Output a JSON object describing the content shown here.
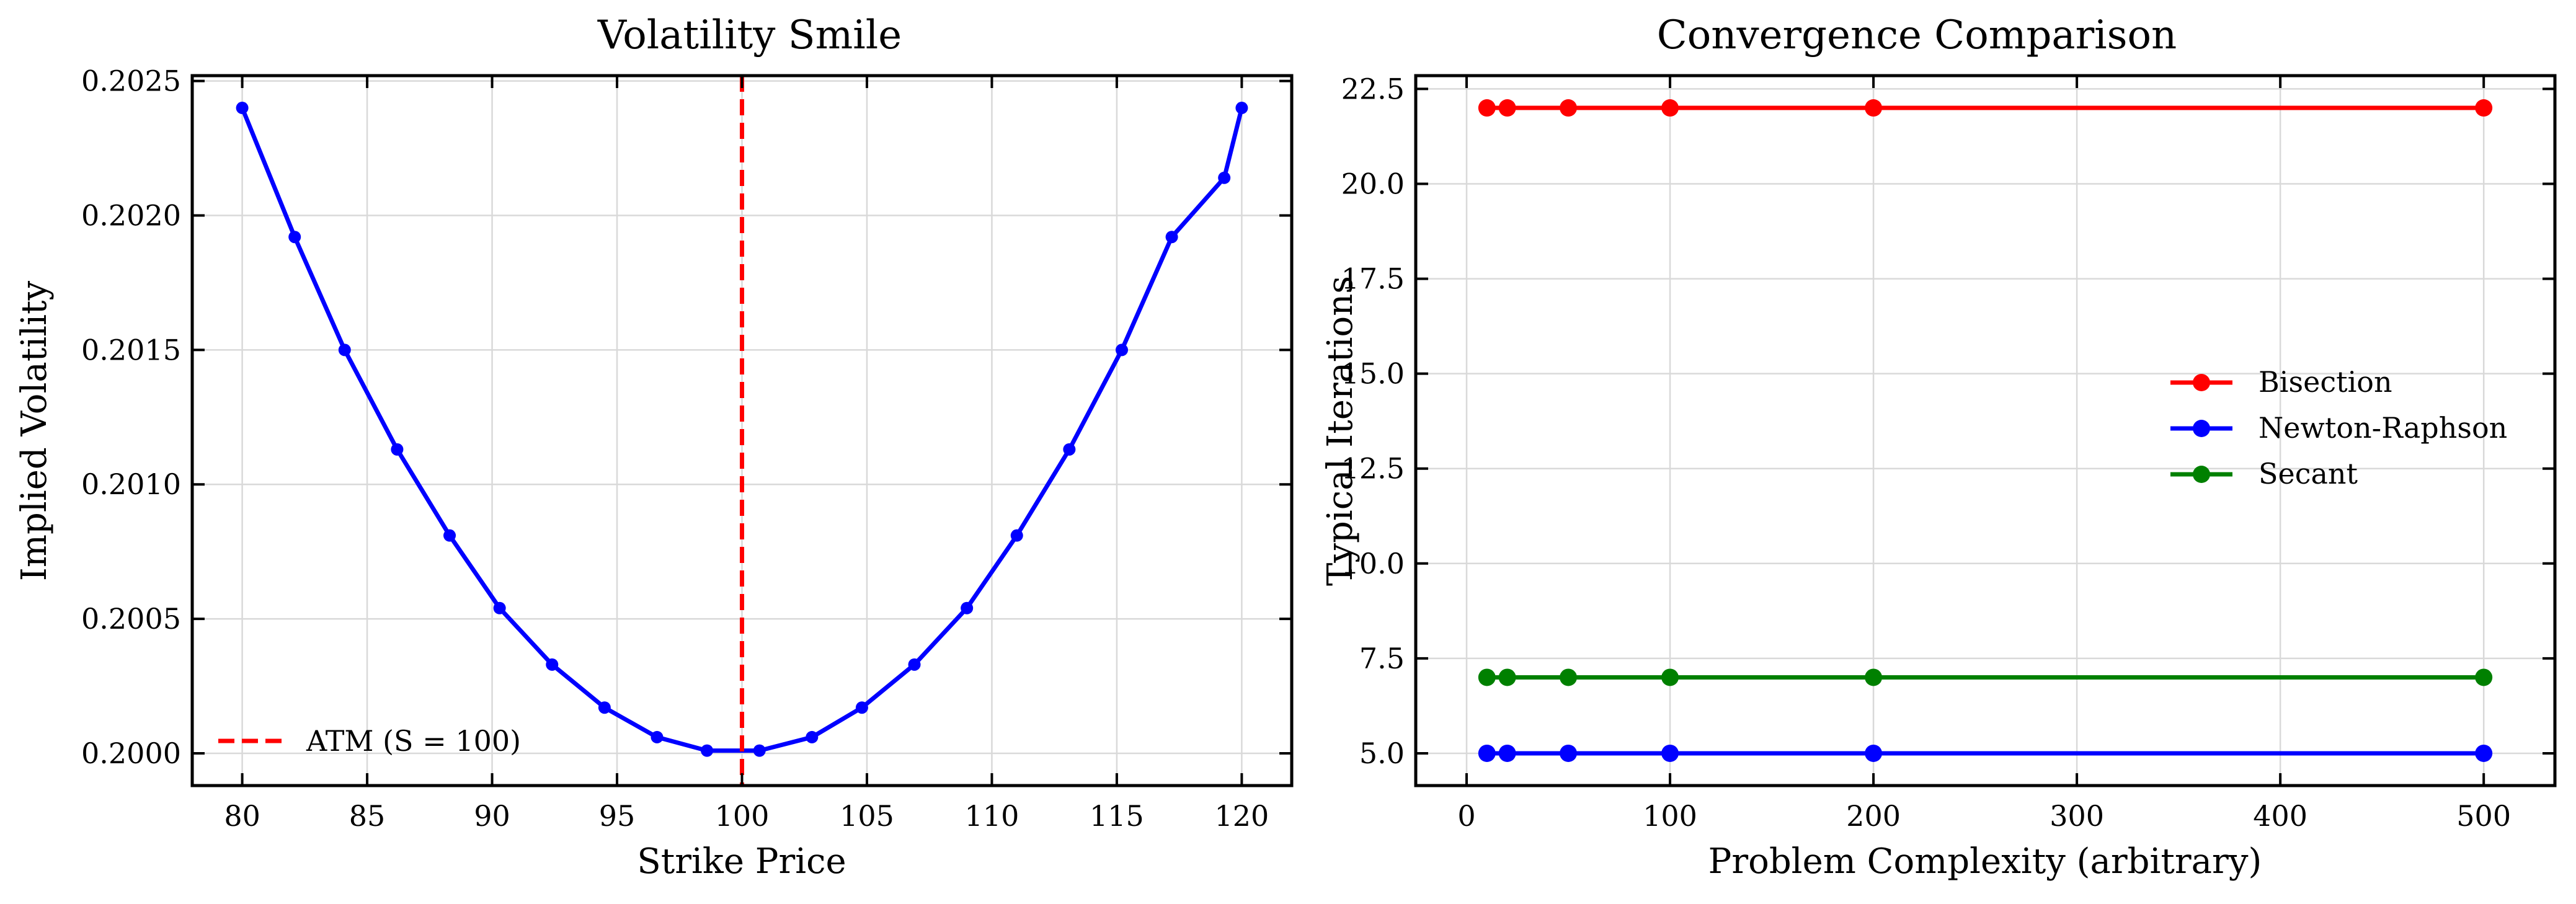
{
  "chart_data": [
    {
      "type": "line",
      "title": "Volatility Smile",
      "xlabel": "Strike Price",
      "ylabel": "Implied Volatility",
      "xlim": [
        78,
        122
      ],
      "ylim": [
        0.19988,
        0.20252
      ],
      "xticks": [
        80,
        85,
        90,
        95,
        100,
        105,
        110,
        115,
        120
      ],
      "yticks": [
        0.2,
        0.2005,
        0.201,
        0.2015,
        0.202,
        0.2025
      ],
      "ytick_labels": [
        "0.2000",
        "0.2005",
        "0.2010",
        "0.2015",
        "0.2020",
        "0.2025"
      ],
      "grid": true,
      "legend_placement": "lower-left",
      "series": [
        {
          "name": "",
          "color": "#0000ff",
          "marker": "circle",
          "x": [
            80,
            82.1,
            84.1,
            86.2,
            88.3,
            90.3,
            92.4,
            94.5,
            96.6,
            98.6,
            100.7,
            102.8,
            104.8,
            106.9,
            109.0,
            111.0,
            113.1,
            115.2,
            117.2,
            119.3,
            120
          ],
          "y": [
            0.2024,
            0.20192,
            0.2015,
            0.20113,
            0.20081,
            0.20054,
            0.20033,
            0.20017,
            0.20006,
            0.20001,
            0.20001,
            0.20006,
            0.20017,
            0.20033,
            0.20054,
            0.20081,
            0.20113,
            0.2015,
            0.20192,
            0.20214,
            0.2024
          ]
        }
      ],
      "reference_lines": [
        {
          "name": "ATM (S = 100)",
          "orientation": "vertical",
          "x": 100,
          "color": "#ff0000",
          "style": "dashed"
        }
      ]
    },
    {
      "type": "line",
      "title": "Convergence Comparison",
      "xlabel": "Problem Complexity (arbitrary)",
      "ylabel": "Typical Iterations",
      "xlim": [
        -25,
        535
      ],
      "ylim": [
        4.15,
        22.85
      ],
      "xticks": [
        0,
        100,
        200,
        300,
        400,
        500
      ],
      "yticks": [
        5.0,
        7.5,
        10.0,
        12.5,
        15.0,
        17.5,
        20.0,
        22.5
      ],
      "ytick_labels": [
        "5.0",
        "7.5",
        "10.0",
        "12.5",
        "15.0",
        "17.5",
        "20.0",
        "22.5"
      ],
      "grid": true,
      "legend_placement": "center-right",
      "x": [
        10,
        20,
        50,
        100,
        200,
        500
      ],
      "series": [
        {
          "name": "Bisection",
          "color": "#ff0000",
          "marker": "circle",
          "values": [
            22,
            22,
            22,
            22,
            22,
            22
          ]
        },
        {
          "name": "Newton-Raphson",
          "color": "#0000ff",
          "marker": "circle",
          "values": [
            5,
            5,
            5,
            5,
            5,
            5
          ]
        },
        {
          "name": "Secant",
          "color": "#008000",
          "marker": "circle",
          "values": [
            7,
            7,
            7,
            7,
            7,
            7
          ]
        }
      ]
    }
  ]
}
